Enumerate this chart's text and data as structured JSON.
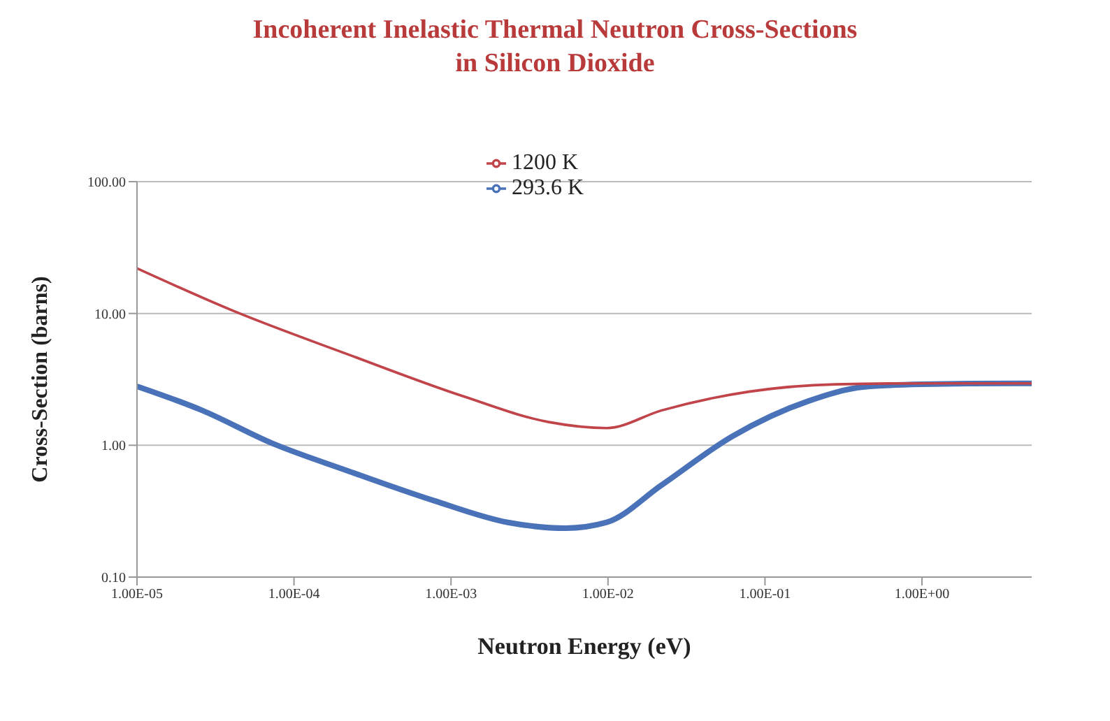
{
  "chart_data": {
    "type": "line",
    "title": "Incoherent Inelastic Thermal Neutron Cross-Sections in Silicon Dioxide",
    "xlabel": "Neutron Energy (eV)",
    "ylabel": "Cross-Section (barns)",
    "log": "xy",
    "grid": "y",
    "legend": "top",
    "line_style": "solid",
    "marker": "none",
    "xlim": [
      1e-05,
      5
    ],
    "ylim": [
      0.1,
      100
    ],
    "xticks": [
      {
        "value": 1e-05,
        "label": "1.00E-05"
      },
      {
        "value": 0.0001,
        "label": "1.00E-04"
      },
      {
        "value": 0.001,
        "label": "1.00E-03"
      },
      {
        "value": 0.01,
        "label": "1.00E-02"
      },
      {
        "value": 0.1,
        "label": "1.00E-01"
      },
      {
        "value": 1,
        "label": "1.00E+00"
      }
    ],
    "yticks": [
      {
        "value": 0.1,
        "label": "0.10"
      },
      {
        "value": 1,
        "label": "1.00"
      },
      {
        "value": 10,
        "label": "10.00"
      },
      {
        "value": 100,
        "label": "100.00"
      }
    ],
    "series": [
      {
        "name": "293.6 K",
        "color": "#4a72b8",
        "x": [
          1e-05,
          2.6e-05,
          7.2e-05,
          0.00022,
          0.00078,
          0.0023,
          0.0054,
          0.0098,
          0.022,
          0.062,
          0.19,
          0.43,
          1,
          3.9,
          5
        ],
        "values": [
          2.8,
          1.84,
          1.04,
          0.64,
          0.38,
          0.26,
          0.235,
          0.26,
          0.5,
          1.17,
          2.17,
          2.77,
          2.9,
          2.95,
          2.95
        ]
      },
      {
        "name": "1200 K",
        "color": "#c0444a",
        "x": [
          1e-05,
          4e-05,
          0.00022,
          0.0012,
          0.0042,
          0.0098,
          0.022,
          0.079,
          0.28,
          1,
          5
        ],
        "values": [
          22,
          10.6,
          4.9,
          2.35,
          1.5,
          1.35,
          1.84,
          2.55,
          2.9,
          2.95,
          2.95
        ]
      }
    ]
  }
}
